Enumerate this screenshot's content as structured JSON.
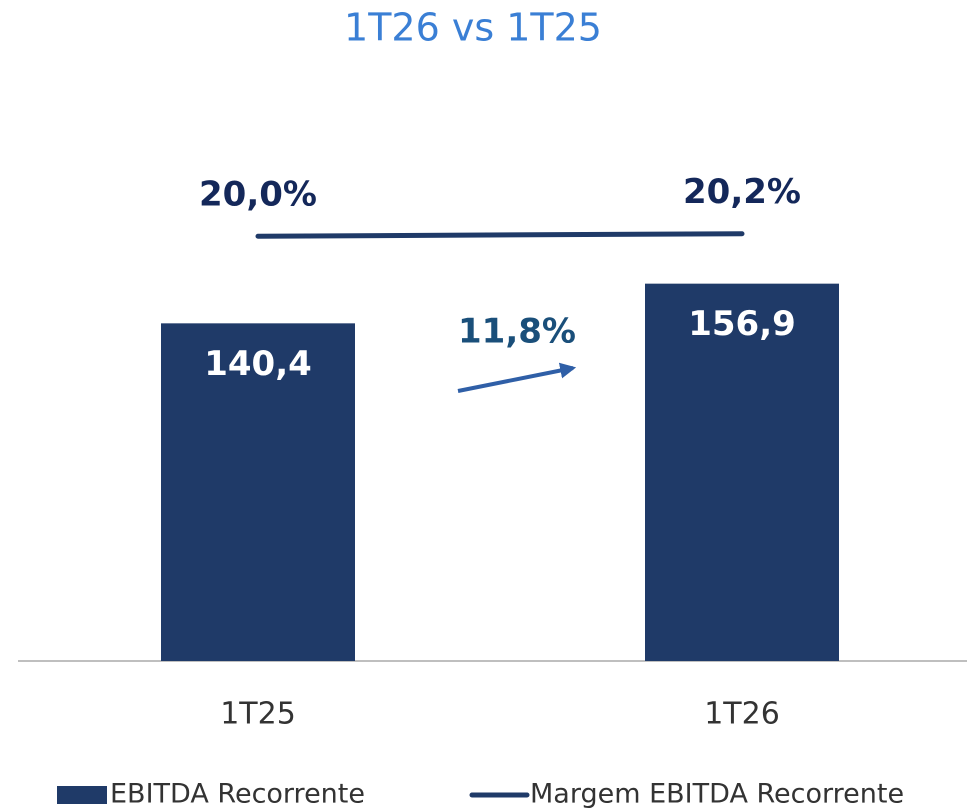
{
  "chart_data": {
    "type": "bar",
    "title": "1T26 vs 1T25",
    "categories": [
      "1T25",
      "1T26"
    ],
    "series": [
      {
        "name": "EBITDA Recorrente",
        "type": "bar",
        "color": "#1f3a68",
        "values": [
          140.4,
          156.9
        ],
        "value_labels": [
          "140,4",
          "156,9"
        ]
      },
      {
        "name": "Margem EBITDA Recorrente",
        "type": "line",
        "axis": "y2",
        "color": "#1f3a68",
        "values": [
          20.0,
          20.2
        ],
        "value_labels": [
          "20,0%",
          "20,2%"
        ]
      }
    ],
    "annotations": [
      "11,8%"
    ],
    "ylim": [
      0,
      200
    ],
    "y2lim": [
      -14,
      24.5
    ]
  }
}
